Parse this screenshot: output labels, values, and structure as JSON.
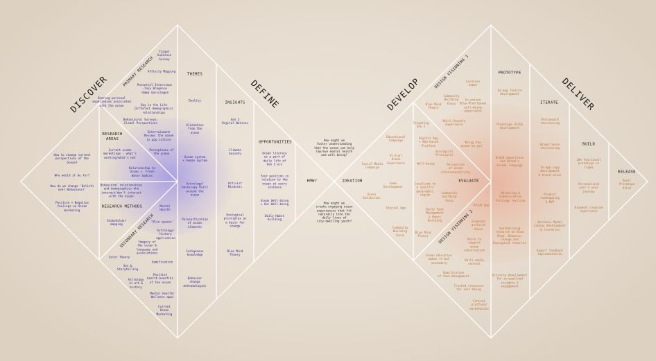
{
  "phases": {
    "discover": "DISCOVER",
    "define": "DEFINE",
    "develop": "DEVELOP",
    "deliver": "DELIVER"
  },
  "sections": {
    "primary_research": "PRIMARY RESEARCH",
    "secondary_research": "SECONDARY RESEARCH",
    "research_areas": "RESEARCH\nAREAS",
    "research_methods": "RESEARCH METHODS",
    "themes": "THEMES",
    "insights": "INSIGHTS",
    "opportunities": "OPPORTUNITIES",
    "hmw": "HMW?",
    "ideation": "IDEATION",
    "evaluate": "EVALUATE",
    "design_visioning_1": "DESIGN VISIONING 1",
    "design_visioning_2": "DESIGN VISIONING 2",
    "prototype": "PROTOTYPE",
    "iterate": "ITERATE",
    "build": "BUILD",
    "release": "RELEASE"
  },
  "discover_items": [
    "Target\nAudience\nSurvey",
    "Affinity Mapping",
    "Potential Interviews\n-Tony Brogence\n-Emma Garschagen",
    "Sharing personal\nexperiences associated\nwith the ocean",
    "Day in the Life\nDifferent demographics\nrelationships",
    "Behavioural Surveys:\nGlobal Perspectives",
    "Entertainment\nReview: the ocean\nin pop culture",
    "How to change current\nperspectives of the\nOcean?",
    "Current ocean\nmarketings - what's\nworking/what's not",
    "Perceptions of\nthe ocean",
    "Who would it be for?",
    "Relationship to\nOcean v. Fresh\nWater bodies",
    "How do we change 'Beliefs\nover Behaviours'",
    "Behavioral relationships\nand demographics who\ninteract/don't interact\nwith the ocean",
    "Positive + Negative\nfeelings on Ocean\nmarketing",
    "Mental\nHealth",
    "Stakeholder\nmapping",
    "'Blue spaces'",
    "Astrology/\nhistory\napplication",
    "Imagery of\nthe ocean &\nlanguage and\nassociations",
    "Color Theory",
    "Gamification",
    "Sex &\nStorytelling",
    "Positive\nhealth benefits\nof the ocean",
    "Astrology\nin art &\nhistory",
    "Mental health/\nWellness apps",
    "Current\nOcean\nMarketing"
  ],
  "themes": [
    "Duality",
    "Alienation\nfrom the\nocean",
    "Ocean system\n+ human system",
    "Astrology/\nhoroscopy built\naround the\nocean",
    "Personification\nof ocean\nelements",
    "Indigenous\nknowledge",
    "Behavior\nchange\nmethodologies"
  ],
  "insights": [
    "Gen Z\nDigital Natives",
    "Climate\nAnxiety",
    "Activist\nMindsets",
    "Ecological\nprinciples as\na basis for\nchange",
    "Blue Mind\nTheory"
  ],
  "opportunities": [
    "Ocean literacy\nas a part of\ndaily life of\nGen Z ers",
    "Your position in\nrelation to the\nocean at every\ninstance",
    "Ocean Well-being\n= Our Well-being",
    "Daily Habit\nbuilding"
  ],
  "hmw_questions": [
    "How might we\nfoster understanding\nthat the ocean can help\nimprove mental health\nand well-being?",
    "How might we\ncreate engaging ocean\nexperiences that fit\nnaturally into the\ndaily lives of\ncity-dwelling youth?"
  ],
  "develop_items": [
    "Location\nnames",
    "Community\nBuilding\nFocus",
    "In-person\nBlue-Mind Based\nwell-being\nexperience",
    "Blue Mind\nTheory",
    "Multi-Sensory\nExperience",
    "Educational\nCampaign",
    "Targeting\nGen Z",
    "Digital App\n+ Web-based\nPlatform",
    "'Bring the\nocean to you'",
    "Social Media\nCampaign",
    "Virtual\nOcean\nExperience",
    "Ecological\nPrinciples",
    "Well-being",
    "Perception\nof ocean\ninterconnectivity",
    "Game\nDevelopment",
    "Localized to\na specific\ngeographic\nregion",
    "Community\nbuilding\nfocus",
    "Ocean\nExhibition",
    "Digital App",
    "Daily Task\nManagement\n& Habit\nBuilding",
    "Community\nBuilding\nFocus",
    "Blue Mind\nTheory",
    "Greenhat\nactivist\nfocus",
    "Voice to\nsupport\nocean\nconservation",
    "Ocean Education\nmakes it but\nsecondary",
    "Multi-media\ncontent",
    "Gamification\nof task management",
    "Trusted resources\nfor self-being",
    "Content\nplatform/\nmarketplace"
  ],
  "deliver_items": [
    "In-app feature\ndevelopment",
    "Prototype UI/UX\nDevelopment",
    "Brand experience\nand Brand's\nVisual language",
    "Marketing &\nCommunication\nStrategy revision",
    "UI/UX App",
    "Synthesizing\nresearch on Blue\nMind, Behavior\nChange and\nEcological theories",
    "Activity development\nfor streamlined\ninsights &\nengagement",
    "Storyboard\nrevisioning",
    "Brand house\nrevisioning",
    "In-app copy\ndevelopment\n& brand voice",
    "Product\nroadmapping\n& MVP",
    "Business Model\nCanvas development\n& iteration",
    "Expert feedback\nimplementation",
    "10% functional\nprototype in\nFigma",
    "Personalized\nuser's user\njourney",
    "Branded creative\nexperience",
    "Small\nPrototype\nPitch"
  ],
  "colors": {
    "line": "#ffffff",
    "text_blue": "#2f2a8f",
    "text_orange": "#b8743e",
    "background": "#e6dccf"
  }
}
